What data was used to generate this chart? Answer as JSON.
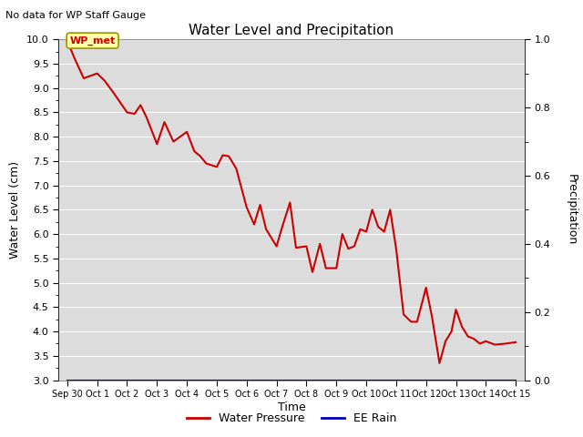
{
  "title": "Water Level and Precipitation",
  "subtitle": "No data for WP Staff Gauge",
  "ylabel_left": "Water Level (cm)",
  "ylabel_right": "Precipitation",
  "xlabel": "Time",
  "ylim_left": [
    3.0,
    10.0
  ],
  "ylim_right": [
    0.0,
    1.0
  ],
  "legend_label_red": "Water Pressure",
  "legend_label_blue": "EE Rain",
  "annotation_text": "WP_met",
  "bg_color": "#dcdcdc",
  "line_color_red": "#cc0000",
  "line_color_blue": "#0000bb",
  "x_tick_labels": [
    "Sep 30",
    "Oct 1",
    "Oct 2",
    "Oct 3",
    "Oct 4",
    "Oct 5",
    "Oct 6",
    "Oct 7",
    "Oct 8",
    "Oct 9",
    "Oct 10",
    "Oct 11",
    "Oct 12",
    "Oct 13",
    "Oct 14",
    "Oct 15"
  ],
  "water_pressure_x": [
    0.0,
    0.25,
    0.55,
    1.0,
    1.25,
    1.55,
    2.0,
    2.25,
    2.45,
    2.65,
    3.0,
    3.25,
    3.55,
    4.0,
    4.25,
    4.45,
    4.65,
    5.0,
    5.2,
    5.4,
    5.65,
    6.0,
    6.25,
    6.45,
    6.65,
    7.0,
    7.2,
    7.45,
    7.65,
    8.0,
    8.2,
    8.45,
    8.65,
    9.0,
    9.2,
    9.4,
    9.6,
    9.8,
    10.0,
    10.2,
    10.4,
    10.6,
    10.8,
    11.0,
    11.25,
    11.5,
    11.7,
    12.0,
    12.2,
    12.45,
    12.65,
    12.85,
    13.0,
    13.2,
    13.4,
    13.6,
    13.8,
    14.0,
    14.3,
    14.65,
    15.0
  ],
  "water_pressure_y": [
    9.97,
    9.6,
    9.2,
    9.3,
    9.15,
    8.9,
    8.5,
    8.47,
    8.65,
    8.4,
    7.85,
    8.3,
    7.9,
    8.1,
    7.7,
    7.6,
    7.45,
    7.38,
    7.62,
    7.6,
    7.35,
    6.55,
    6.2,
    6.6,
    6.1,
    5.75,
    6.17,
    6.65,
    5.72,
    5.75,
    5.22,
    5.8,
    5.3,
    5.3,
    6.0,
    5.7,
    5.75,
    6.1,
    6.05,
    6.5,
    6.15,
    6.05,
    6.5,
    5.7,
    4.35,
    4.2,
    4.2,
    4.9,
    4.3,
    3.35,
    3.8,
    4.0,
    4.45,
    4.1,
    3.9,
    3.85,
    3.75,
    3.8,
    3.73,
    3.75,
    3.78
  ],
  "right_yticks": [
    0.0,
    0.2,
    0.4,
    0.6,
    0.8,
    1.0
  ],
  "right_ytick_minor": [
    0.1,
    0.3,
    0.5,
    0.7,
    0.9
  ],
  "left_yticks": [
    3.0,
    3.5,
    4.0,
    4.5,
    5.0,
    5.5,
    6.0,
    6.5,
    7.0,
    7.5,
    8.0,
    8.5,
    9.0,
    9.5,
    10.0
  ],
  "left_ytick_minor": [
    3.25,
    3.75,
    4.25,
    4.75,
    5.25,
    5.75,
    6.25,
    6.75,
    7.25,
    7.75,
    8.25,
    8.75,
    9.25,
    9.75
  ]
}
